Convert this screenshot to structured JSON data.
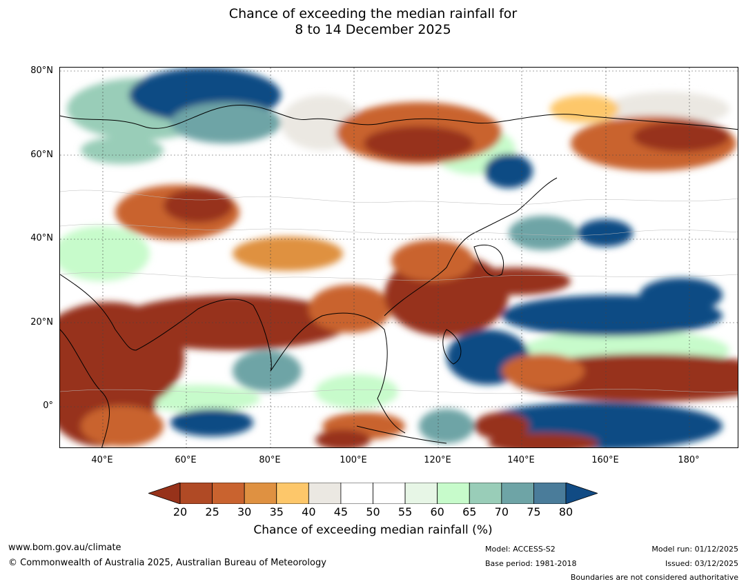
{
  "title": {
    "line1": "Chance of exceeding the median rainfall for",
    "line2": "8 to 14 December 2025"
  },
  "map": {
    "region": "Asia / Western Pacific",
    "lat_ticks": [
      "80°N",
      "60°N",
      "40°N",
      "20°N",
      "0°"
    ],
    "lon_ticks": [
      "40°E",
      "60°E",
      "80°E",
      "100°E",
      "120°E",
      "140°E",
      "160°E",
      "180°"
    ],
    "lat_range": [
      -10,
      80
    ],
    "lon_range": [
      30,
      191
    ]
  },
  "colorbar": {
    "ticks": [
      "20",
      "25",
      "30",
      "35",
      "40",
      "45",
      "50",
      "55",
      "60",
      "65",
      "70",
      "75",
      "80"
    ],
    "colors": [
      "#97321a",
      "#b04a25",
      "#c9632f",
      "#df9141",
      "#fdc76a",
      "#ebe8e2",
      "#ffffff",
      "#ffffff",
      "#e7f6e6",
      "#c7fbcb",
      "#99cdb8",
      "#6ea4a6",
      "#4a7c9a",
      "#114b84"
    ],
    "label": "Chance of exceeding median rainfall (%)"
  },
  "footer": {
    "website": "www.bom.gov.au/climate",
    "copyright": "© Commonwealth of Australia 2025, Australian Bureau of Meteorology",
    "model": "Model: ACCESS-S2",
    "base_period": "Base period: 1981-2018",
    "model_run": "Model run: 01/12/2025",
    "issued": "Issued: 03/12/2025",
    "disclaimer": "Boundaries are not considered authoritative"
  }
}
